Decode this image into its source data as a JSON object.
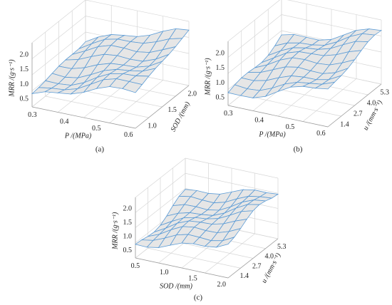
{
  "panels": [
    {
      "caption": "(a)",
      "z_label": "MRR /(g·s⁻¹)",
      "x_label": "P /(MPa)",
      "depth_label": "SOD /(mm)",
      "z_ticks": [
        "0.5",
        "1.0",
        "1.5",
        "2.0"
      ],
      "x_ticks": [
        "0.3",
        "0.4",
        "0.5",
        "0.6"
      ],
      "depth_ticks": [
        "1.0",
        "1.5",
        "2.0"
      ]
    },
    {
      "caption": "(b)",
      "z_label": "MRR /(g·s⁻¹)",
      "x_label": "P /(MPa)",
      "depth_label": "u /(mm·s⁻¹)",
      "z_ticks": [
        "0.5",
        "1.0",
        "1.5",
        "2.0"
      ],
      "x_ticks": [
        "0.3",
        "0.4",
        "0.5",
        "0.6"
      ],
      "depth_ticks": [
        "1.4",
        "2.7",
        "4.0",
        "5.3"
      ]
    },
    {
      "caption": "(c)",
      "z_label": "MRR /(g·s⁻¹)",
      "x_label": "SOD /(mm)",
      "depth_label": "u /(mm·s⁻¹)",
      "z_ticks": [
        "0.5",
        "1.0",
        "1.5",
        "2.0"
      ],
      "x_ticks": [
        "0.5",
        "1.0",
        "1.5",
        "2.0"
      ],
      "depth_ticks": [
        "1.4",
        "2.7",
        "4.0",
        "5.3"
      ]
    }
  ]
}
